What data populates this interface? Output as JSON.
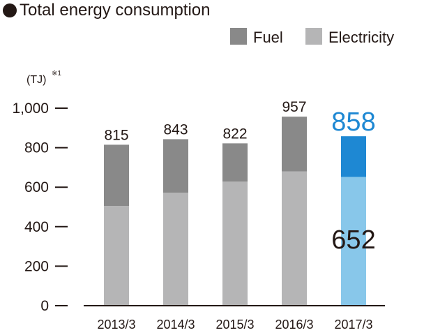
{
  "chart_data": {
    "type": "bar",
    "stacked": true,
    "title": "Total energy consumption",
    "unit_label": "(TJ)",
    "unit_note": "※1",
    "categories": [
      "2013/3",
      "2014/3",
      "2015/3",
      "2016/3",
      "2017/3"
    ],
    "series": [
      {
        "name": "Electricity",
        "values": [
          505,
          572,
          628,
          680,
          652
        ],
        "color": "#b5b5b6",
        "highlight_color": "#88c7ea"
      },
      {
        "name": "Fuel",
        "values": [
          310,
          271,
          194,
          277,
          206
        ],
        "color": "#898989",
        "highlight_color": "#1e88d3"
      }
    ],
    "totals": [
      "815",
      "843",
      "822",
      "957",
      "858"
    ],
    "highlight_index": 4,
    "highlight_total_color": "#1e88d3",
    "highlight_inner_label": "652",
    "yticks": [
      {
        "value": 0,
        "label": "0"
      },
      {
        "value": 200,
        "label": "200"
      },
      {
        "value": 400,
        "label": "400"
      },
      {
        "value": 600,
        "label": "600"
      },
      {
        "value": 800,
        "label": "800"
      },
      {
        "value": 1000,
        "label": "1,000"
      }
    ],
    "ylim": [
      0,
      1000
    ],
    "legend": [
      {
        "name": "Fuel",
        "color": "#898989"
      },
      {
        "name": "Electricity",
        "color": "#b5b5b6"
      }
    ],
    "legend_position": "top-right",
    "grid": false
  }
}
